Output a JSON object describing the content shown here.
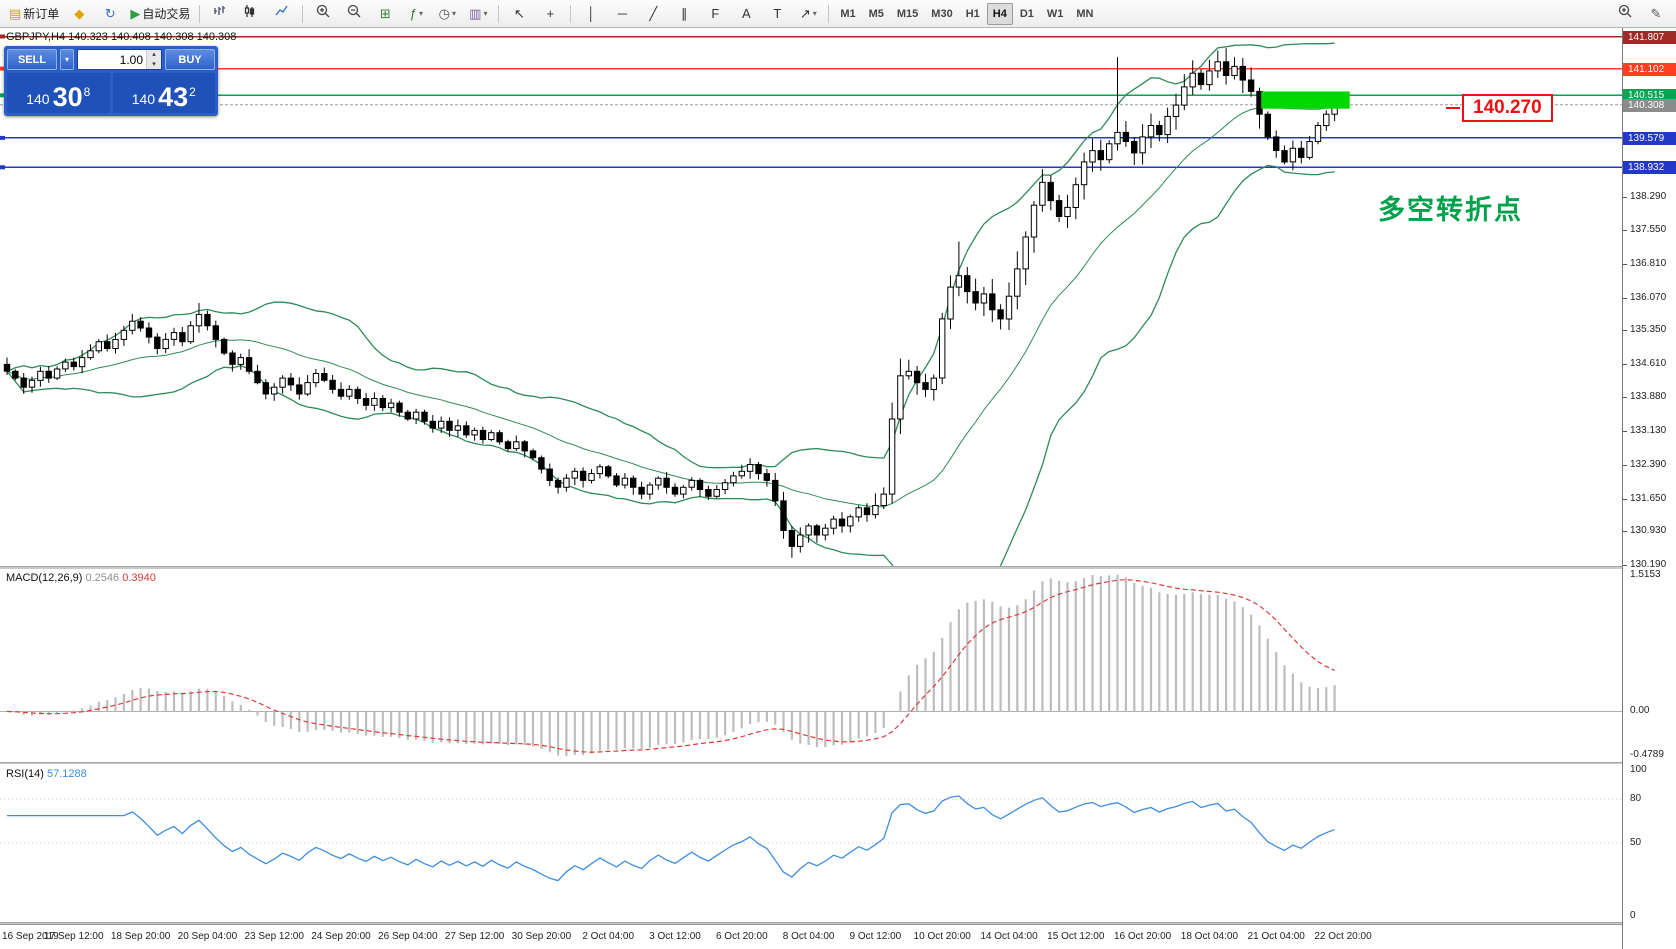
{
  "header": {
    "symbol_info": "GBPJPY,H4  140.323 140.408 140.308 140.308"
  },
  "toolbar": {
    "items": [
      {
        "type": "button",
        "name": "new-order-button",
        "icon": "order-icon",
        "glyph": "▤",
        "glyph_color": "#c8a200",
        "label": "新订单"
      },
      {
        "type": "button",
        "name": "metaeditor-button",
        "icon": "metaeditor-icon",
        "glyph": "◆",
        "glyph_color": "#e0a400"
      },
      {
        "type": "button",
        "name": "refresh-button",
        "icon": "refresh-icon",
        "glyph": "↻",
        "glyph_color": "#3a6fc8"
      },
      {
        "type": "button",
        "name": "autotrading-button",
        "icon": "play-icon",
        "glyph": "▶",
        "glyph_color": "#2ea043",
        "label": "自动交易"
      },
      {
        "type": "separator"
      },
      {
        "type": "button",
        "name": "bar-chart-button",
        "icon": "bar-chart-icon",
        "svg": "bars"
      },
      {
        "type": "button",
        "name": "candlestick-chart-button",
        "icon": "candlestick-icon",
        "svg": "candles"
      },
      {
        "type": "button",
        "name": "line-chart-button",
        "icon": "line-chart-icon",
        "svg": "line"
      },
      {
        "type": "separator"
      },
      {
        "type": "button",
        "name": "zoom-in-button",
        "icon": "zoom-in-icon",
        "svg": "zoom-in"
      },
      {
        "type": "button",
        "name": "zoom-out-button",
        "icon": "zoom-out-icon",
        "svg": "zoom-out"
      },
      {
        "type": "button",
        "name": "tile-windows-button",
        "icon": "tile-windows-icon",
        "glyph": "⊞",
        "glyph_color": "#3f7f3f"
      },
      {
        "type": "button",
        "name": "indicators-button",
        "icon": "indicator-icon",
        "glyph": "ƒ",
        "glyph_color": "#2e7d32",
        "caret": true
      },
      {
        "type": "button",
        "name": "periods-button",
        "icon": "clock-icon",
        "glyph": "◷",
        "glyph_color": "#555555",
        "caret": true
      },
      {
        "type": "button",
        "name": "templates-button",
        "icon": "template-icon",
        "glyph": "▥",
        "glyph_color": "#7a5c99",
        "caret": true
      },
      {
        "type": "separator"
      },
      {
        "type": "button",
        "name": "cursor-button",
        "icon": "cursor-icon",
        "glyph": "↖",
        "glyph_color": "#333333"
      },
      {
        "type": "button",
        "name": "crosshair-button",
        "icon": "crosshair-icon",
        "glyph": "+",
        "glyph_color": "#333333"
      },
      {
        "type": "separator"
      },
      {
        "type": "button",
        "name": "vertical-line-button",
        "icon": "vertical-line-icon",
        "glyph": "│",
        "glyph_color": "#333333"
      },
      {
        "type": "button",
        "name": "horizontal-line-button",
        "icon": "horizontal-line-icon",
        "glyph": "─",
        "glyph_color": "#333333"
      },
      {
        "type": "button",
        "name": "trendline-button",
        "icon": "trendline-icon",
        "glyph": "╱",
        "glyph_color": "#333333"
      },
      {
        "type": "button",
        "name": "channel-button",
        "icon": "channel-icon",
        "glyph": "∥",
        "glyph_color": "#333333"
      },
      {
        "type": "button",
        "name": "fibonacci-button",
        "icon": "fibonacci-icon",
        "glyph": "F",
        "glyph_color": "#333333"
      },
      {
        "type": "button",
        "name": "text-button",
        "icon": "text-icon",
        "glyph": "A",
        "glyph_color": "#333333"
      },
      {
        "type": "button",
        "name": "label-button",
        "icon": "label-icon",
        "glyph": "T",
        "glyph_color": "#333333"
      },
      {
        "type": "button",
        "name": "arrows-button",
        "icon": "arrow-icon",
        "glyph": "↗",
        "glyph_color": "#333333",
        "caret": true
      },
      {
        "type": "separator"
      },
      {
        "type": "timeframes"
      },
      {
        "type": "spacer"
      },
      {
        "type": "button",
        "name": "search-button",
        "icon": "search-icon",
        "svg": "zoom-in"
      },
      {
        "type": "button",
        "name": "compose-button",
        "icon": "pencil-icon",
        "glyph": "✎",
        "glyph_color": "#555555"
      }
    ],
    "timeframes": [
      "M1",
      "M5",
      "M15",
      "M30",
      "H1",
      "H4",
      "D1",
      "W1",
      "MN"
    ],
    "active_timeframe": "H4"
  },
  "trade_panel": {
    "sell_label": "SELL",
    "buy_label": "BUY",
    "volume": "1.00",
    "bid_prefix": "140",
    "bid_big": "30",
    "bid_sup": "8",
    "ask_prefix": "140",
    "ask_big": "43",
    "ask_sup": "2"
  },
  "annotations": {
    "turning_point": {
      "text": "多空转折点",
      "color": "#00a14b"
    },
    "price_label": {
      "text": "140.270",
      "color": "#ee1111"
    }
  },
  "chart_data": {
    "type": "candlestick",
    "symbol": "GBPJPY",
    "timeframe": "H4",
    "first_open": 134.6,
    "closes": [
      134.45,
      134.3,
      134.1,
      134.25,
      134.45,
      134.3,
      134.5,
      134.65,
      134.55,
      134.75,
      134.9,
      135.1,
      134.95,
      135.15,
      135.35,
      135.55,
      135.4,
      135.2,
      134.95,
      135.15,
      135.3,
      135.1,
      135.45,
      135.7,
      135.45,
      135.15,
      134.85,
      134.6,
      134.75,
      134.45,
      134.2,
      133.95,
      134.1,
      134.3,
      134.15,
      133.95,
      134.2,
      134.4,
      134.25,
      134.05,
      133.9,
      134.05,
      133.85,
      133.7,
      133.85,
      133.65,
      133.75,
      133.55,
      133.4,
      133.55,
      133.35,
      133.2,
      133.35,
      133.15,
      133.25,
      133.05,
      133.15,
      132.95,
      133.1,
      132.9,
      132.75,
      132.9,
      132.7,
      132.55,
      132.3,
      132.05,
      131.9,
      132.1,
      132.25,
      132.05,
      132.2,
      132.35,
      132.15,
      131.95,
      132.1,
      131.9,
      131.75,
      131.95,
      132.1,
      131.9,
      131.75,
      131.9,
      132.05,
      131.85,
      131.7,
      131.85,
      132.0,
      132.15,
      132.25,
      132.4,
      132.2,
      132.05,
      131.6,
      130.95,
      130.6,
      130.85,
      131.05,
      130.85,
      131.0,
      131.2,
      131.05,
      131.25,
      131.45,
      131.3,
      131.5,
      131.75,
      133.4,
      134.35,
      134.45,
      134.2,
      134.05,
      134.3,
      135.6,
      136.3,
      136.55,
      136.2,
      135.95,
      136.15,
      135.8,
      135.6,
      136.1,
      136.7,
      137.4,
      138.1,
      138.6,
      138.2,
      137.85,
      138.05,
      138.55,
      139.05,
      139.3,
      139.1,
      139.45,
      139.7,
      139.5,
      139.25,
      139.6,
      139.85,
      139.65,
      140.05,
      140.3,
      140.7,
      141.0,
      140.75,
      141.05,
      141.25,
      140.95,
      141.15,
      140.85,
      140.6,
      140.1,
      139.6,
      139.3,
      139.05,
      139.35,
      139.15,
      139.5,
      139.85,
      140.1,
      140.308
    ],
    "wick_overrides": {
      "23": [
        135.95,
        135.3
      ],
      "94": [
        131.05,
        130.35
      ],
      "114": [
        137.3,
        136.1
      ],
      "133": [
        141.35,
        139.3
      ],
      "145": [
        141.5,
        140.9
      ]
    },
    "levels": {
      "hlines": [
        {
          "price": 141.807,
          "label": "141.807",
          "color": "#9e2b25"
        },
        {
          "price": 141.102,
          "label": "141.102",
          "color": "#ff3d1f"
        },
        {
          "price": 140.515,
          "label": "140.515",
          "color": "#00a651"
        },
        {
          "price": 139.579,
          "label": "139.579",
          "color": "#2438c8"
        },
        {
          "price": 138.932,
          "label": "138.932",
          "color": "#2438c8"
        }
      ],
      "current_price": {
        "price": 140.308,
        "label": "140.308",
        "color": "#8c8c8c"
      },
      "rectangle": {
        "from_bar": 150.2,
        "to_bar": 160.8,
        "top_price": 140.6,
        "bottom_price": 140.22,
        "color": "#00d600"
      },
      "price_ticks": [
        "138.290",
        "137.550",
        "136.810",
        "136.070",
        "135.350",
        "134.610",
        "133.880",
        "133.130",
        "132.390",
        "131.650",
        "130.930",
        "130.190"
      ]
    },
    "indicators": {
      "bollinger": {
        "period": 20,
        "deviation": 2,
        "color": "#2e8b57"
      },
      "macd": {
        "title": "MACD(12,26,9)",
        "value_main": "0.2546",
        "value_signal": "0.3940",
        "scale_ticks": [
          "1.5153",
          "0.00",
          "-0.4789"
        ],
        "histogram_color": "#bdbdbd",
        "signal_color": "#df3a3a"
      },
      "rsi": {
        "title": "RSI(14)",
        "value": "57.1288",
        "scale_ticks": [
          "100",
          "80",
          "50",
          "0"
        ],
        "levels": [
          80,
          50
        ],
        "color": "#3e8ede"
      }
    },
    "x_labels": [
      "16 Sep 2019",
      "17 Sep 12:00",
      "18 Sep 20:00",
      "20 Sep 04:00",
      "23 Sep 12:00",
      "24 Sep 20:00",
      "26 Sep 04:00",
      "27 Sep 12:00",
      "30 Sep 20:00",
      "2 Oct 04:00",
      "3 Oct 12:00",
      "6 Oct 20:00",
      "8 Oct 04:00",
      "9 Oct 12:00",
      "10 Oct 20:00",
      "14 Oct 04:00",
      "15 Oct 12:00",
      "16 Oct 20:00",
      "18 Oct 04:00",
      "21 Oct 04:00",
      "22 Oct 20:00"
    ],
    "candle_colors": {
      "up_fill": "#ffffff",
      "down_fill": "#000000",
      "outline": "#000000"
    }
  }
}
